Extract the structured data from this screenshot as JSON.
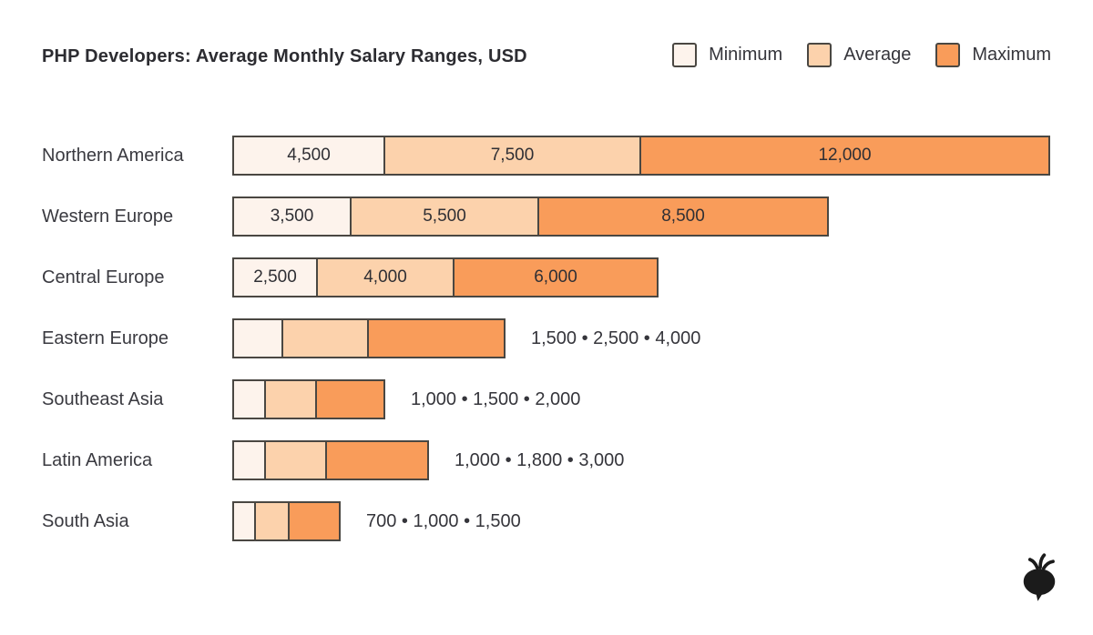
{
  "title": "PHP Developers: Average Monthly Salary Ranges, USD",
  "legend": {
    "items": [
      {
        "label": "Minimum",
        "color": "#FDF3EC"
      },
      {
        "label": "Average",
        "color": "#FCD2AC"
      },
      {
        "label": "Maximum",
        "color": "#F99C5A"
      }
    ]
  },
  "colors": {
    "minimum": "#FDF3EC",
    "average": "#FCD2AC",
    "maximum": "#F99C5A",
    "segment_border": "#4A4742",
    "text": "#35353B",
    "logo": "#1B1B1B"
  },
  "logo_icon": "turnip-logo",
  "chart_data": {
    "type": "bar",
    "orientation": "horizontal",
    "grouping": "stacked-range",
    "title": "PHP Developers: Average Monthly Salary Ranges, USD",
    "unit": "USD per month",
    "legend_position": "top-right",
    "grid": false,
    "axis_labels_shown": false,
    "categories": [
      "Northern America",
      "Western Europe",
      "Central Europe",
      "Eastern Europe",
      "Southeast Asia",
      "Latin America",
      "South Asia"
    ],
    "series": [
      {
        "name": "Minimum",
        "values": [
          4500,
          3500,
          2500,
          1500,
          1000,
          1000,
          700
        ]
      },
      {
        "name": "Average",
        "values": [
          7500,
          5500,
          4000,
          2500,
          1500,
          1800,
          1000
        ]
      },
      {
        "name": "Maximum",
        "values": [
          12000,
          8500,
          6000,
          4000,
          2000,
          3000,
          1500
        ]
      }
    ],
    "rows": [
      {
        "region": "Northern America",
        "values": [
          4500,
          7500,
          12000
        ],
        "value_labels": [
          "4,500",
          "7,500",
          "12,000"
        ],
        "labels_inside": true,
        "outside_label": ""
      },
      {
        "region": "Western Europe",
        "values": [
          3500,
          5500,
          8500
        ],
        "value_labels": [
          "3,500",
          "5,500",
          "8,500"
        ],
        "labels_inside": true,
        "outside_label": ""
      },
      {
        "region": "Central Europe",
        "values": [
          2500,
          4000,
          6000
        ],
        "value_labels": [
          "2,500",
          "4,000",
          "6,000"
        ],
        "labels_inside": true,
        "outside_label": ""
      },
      {
        "region": "Eastern Europe",
        "values": [
          1500,
          2500,
          4000
        ],
        "value_labels": [
          "1,500",
          "2,500",
          "4,000"
        ],
        "labels_inside": false,
        "outside_label": "1,500 • 2,500 • 4,000"
      },
      {
        "region": "Southeast Asia",
        "values": [
          1000,
          1500,
          2000
        ],
        "value_labels": [
          "1,000",
          "1,500",
          "2,000"
        ],
        "labels_inside": false,
        "outside_label": "1,000 • 1,500 • 2,000"
      },
      {
        "region": "Latin America",
        "values": [
          1000,
          1800,
          3000
        ],
        "value_labels": [
          "1,000",
          "1,800",
          "3,000"
        ],
        "labels_inside": false,
        "outside_label": "1,000 • 1,800 • 3,000"
      },
      {
        "region": "South Asia",
        "values": [
          700,
          1000,
          1500
        ],
        "value_labels": [
          "700",
          "1,000",
          "1,500"
        ],
        "labels_inside": false,
        "outside_label": "700 • 1,000 • 1,500"
      }
    ]
  }
}
